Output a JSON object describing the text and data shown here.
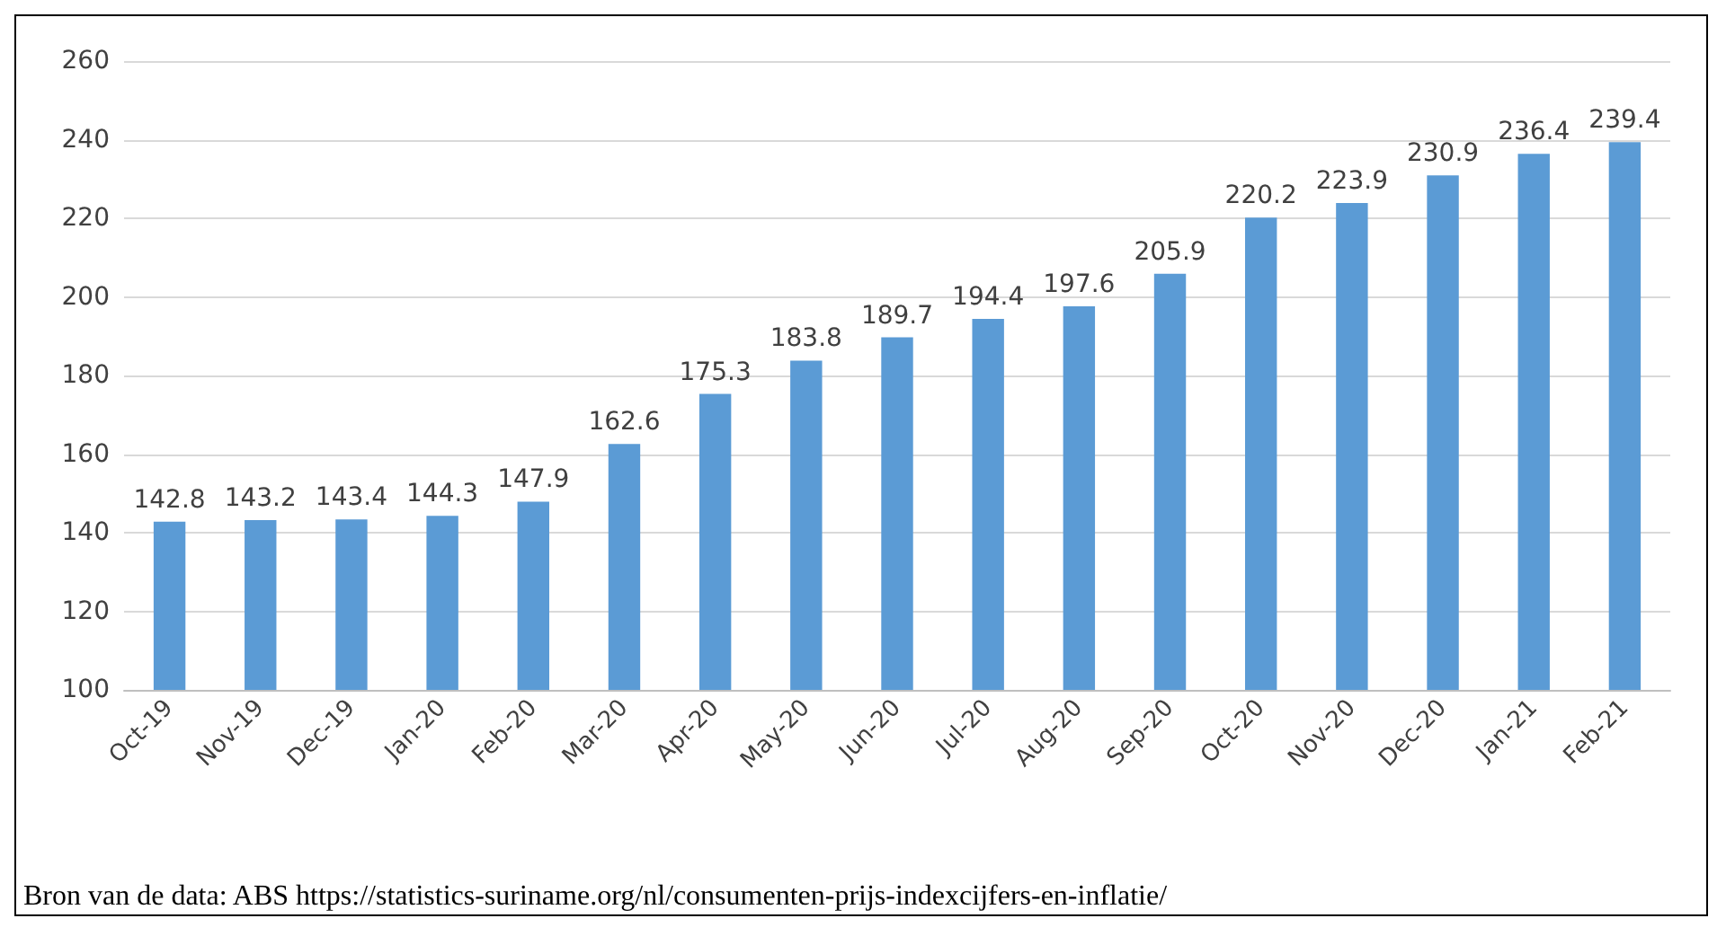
{
  "chart_data": {
    "type": "bar",
    "categories": [
      "Oct-19",
      "Nov-19",
      "Dec-19",
      "Jan-20",
      "Feb-20",
      "Mar-20",
      "Apr-20",
      "May-20",
      "Jun-20",
      "Jul-20",
      "Aug-20",
      "Sep-20",
      "Oct-20",
      "Nov-20",
      "Dec-20",
      "Jan-21",
      "Feb-21"
    ],
    "values": [
      142.8,
      143.2,
      143.4,
      144.3,
      147.9,
      162.6,
      175.3,
      183.8,
      189.7,
      194.4,
      197.6,
      205.9,
      220.2,
      223.9,
      230.9,
      236.4,
      239.4
    ],
    "color": "#5b9bd5",
    "ylim": [
      100,
      260
    ],
    "yticks": [
      100,
      120,
      140,
      160,
      180,
      200,
      220,
      240,
      260
    ],
    "grid": "y",
    "data_labels": true,
    "annotations": [
      "Bron van de data: ABS https://statistics-suriname.org/nl/consumenten-prijs-indexcijfers-en-inflatie/"
    ]
  }
}
